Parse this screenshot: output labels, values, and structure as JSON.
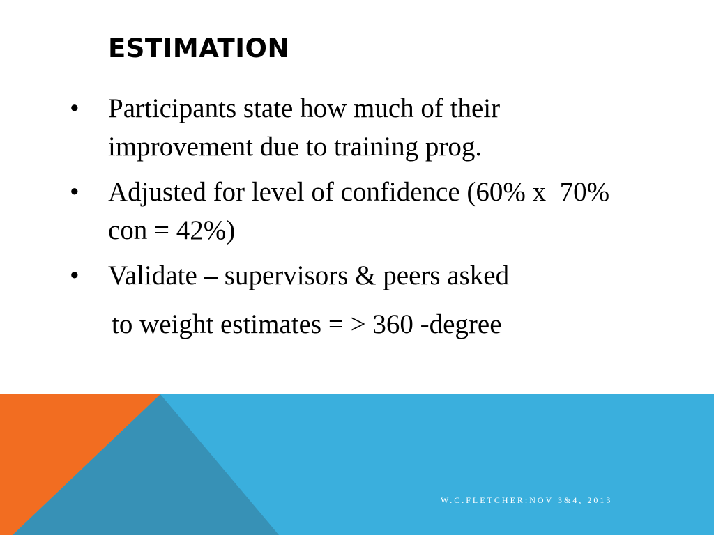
{
  "slide": {
    "title": "ESTIMATION",
    "bullets": [
      "Participants state how much of their improvement due to training prog.",
      "Adjusted for level of confidence (60% x  70% con = 42%)",
      "Validate – supervisors & peers asked"
    ],
    "continuation": "to weight estimates = > 360 -degree",
    "footer": "W.C.FLETCHER:NOV 3&4, 2013"
  }
}
